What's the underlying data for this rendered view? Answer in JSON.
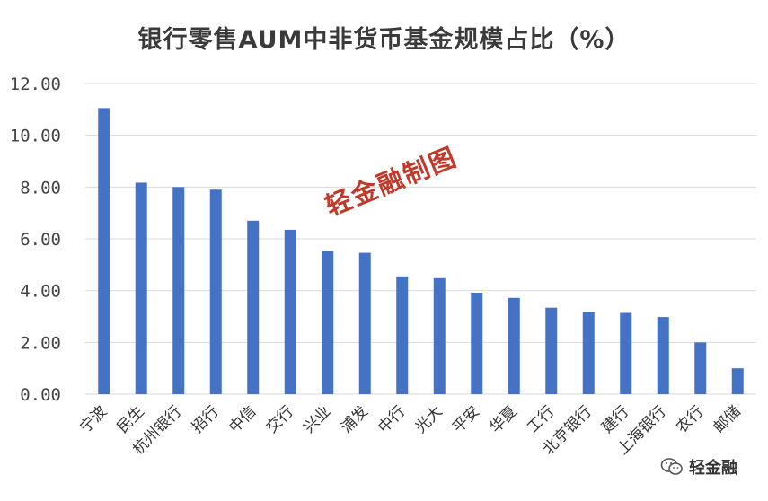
{
  "chart_data": {
    "type": "bar",
    "title": "银行零售AUM中非货币基金规模占比（%）",
    "categories": [
      "宁波",
      "民生",
      "杭州银行",
      "招行",
      "中信",
      "交行",
      "兴业",
      "浦发",
      "中行",
      "光大",
      "平安",
      "华夏",
      "工行",
      "北京银行",
      "建行",
      "上海银行",
      "农行",
      "邮储"
    ],
    "values": [
      11.05,
      8.17,
      8.0,
      7.9,
      6.7,
      6.35,
      5.52,
      5.46,
      4.55,
      4.48,
      3.92,
      3.72,
      3.34,
      3.17,
      3.14,
      2.98,
      2.0,
      1.0
    ],
    "yticks": [
      "0.00",
      "2.00",
      "4.00",
      "6.00",
      "8.00",
      "10.00",
      "12.00"
    ],
    "ylim": [
      0,
      12
    ],
    "grid": true,
    "bar_color": "#4472C4",
    "grid_color": "#d9d9d9"
  },
  "watermark": "轻金融制图",
  "brand": {
    "name": "轻金融",
    "icon": "wechat-icon"
  }
}
